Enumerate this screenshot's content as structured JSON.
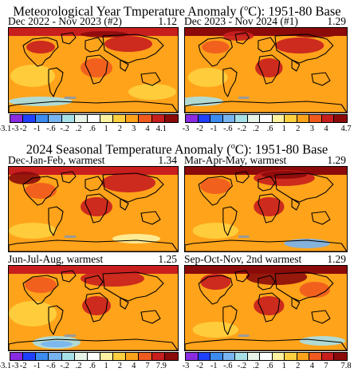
{
  "top_title": {
    "text": "Meteorological Year Tmperature Anomaly (",
    "unit": "o",
    "unit_tail": "C): 1951-80 Base"
  },
  "bottom_title": {
    "text": "2024 Seasonal Temperature Anomaly (",
    "unit": "o",
    "unit_tail": "C): 1951-80 Base"
  },
  "panels": [
    {
      "label": "Dec 2022 - Nov 2023 (#2)",
      "value": "1.12"
    },
    {
      "label": "Dec 2023 - Nov 2024 (#1)",
      "value": "1.29"
    },
    {
      "label": "Dec-Jan-Feb, warmest",
      "value": "1.34"
    },
    {
      "label": "Mar-Apr-May, warmest",
      "value": "1.29"
    },
    {
      "label": "Jun-Jul-Aug, warmest",
      "value": "1.25"
    },
    {
      "label": "Sep-Oct-Nov, 2nd warmest",
      "value": "1.29"
    }
  ],
  "legend_colors": [
    "#8a2be2",
    "#2040ff",
    "#3c8cf0",
    "#78b4f0",
    "#a8e0e8",
    "#e8f4e8",
    "#ffffff",
    "#fff2a0",
    "#ffd040",
    "#ffa31a",
    "#f05a1e",
    "#c81e1e",
    "#8b0a0a",
    "#ff88c8"
  ],
  "legends": [
    {
      "ticks": [
        "-3.1",
        "-3",
        "-2",
        "-1",
        "-.6",
        "-.2",
        ".2",
        ".6",
        "1",
        "2",
        "3",
        "4",
        "4.1"
      ]
    },
    {
      "ticks": [
        "-3",
        "-2",
        "-1",
        "-.6",
        "-.2",
        ".2",
        ".6",
        "1",
        "2",
        "3",
        "4",
        "4.7"
      ]
    },
    {
      "ticks": [
        "-3.1",
        "-3",
        "-2",
        "-1",
        "-.6",
        "-.2",
        ".2",
        ".6",
        "1",
        "2",
        "4",
        "7",
        "7.9"
      ]
    },
    {
      "ticks": [
        "-3",
        "-2",
        "-1",
        "-.6",
        "-.2",
        ".2",
        ".6",
        "1",
        "2",
        "4",
        "7",
        "7.8"
      ]
    }
  ],
  "map_colors": {
    "base": "#ffa31a",
    "warm": "#f05a1e",
    "hot": "#c81e1e",
    "extreme": "#8b0a0a",
    "mild": "#ffd040",
    "cool": "#fff2a0",
    "cold": "#a8e0e8",
    "colder": "#78b4f0",
    "missing": "#9a9a9a",
    "land_outline": "#000000"
  }
}
